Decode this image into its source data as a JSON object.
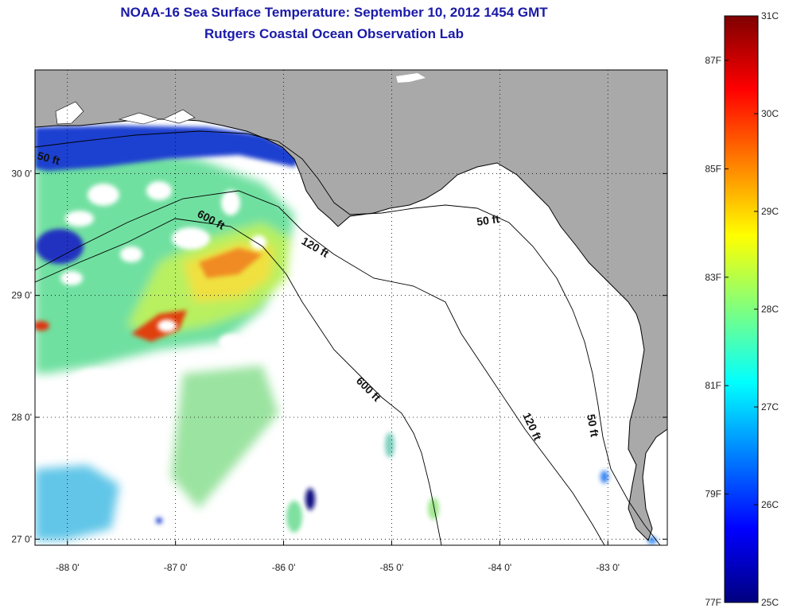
{
  "title": {
    "line1": "NOAA-16 Sea Surface Temperature:  September 10, 2012 1454 GMT",
    "line2": "Rutgers Coastal Ocean Observation Lab"
  },
  "map": {
    "lon_range": [
      -88.3,
      -82.45
    ],
    "lat_range": [
      26.95,
      30.85
    ],
    "lon_ticks": [
      {
        "value": -88,
        "label": "-88 0'"
      },
      {
        "value": -87,
        "label": "-87 0'"
      },
      {
        "value": -86,
        "label": "-86 0'"
      },
      {
        "value": -85,
        "label": "-85 0'"
      },
      {
        "value": -84,
        "label": "-84 0'"
      },
      {
        "value": -83,
        "label": "-83 0'"
      }
    ],
    "lat_ticks": [
      {
        "value": 30,
        "label": "30 0'"
      },
      {
        "value": 29,
        "label": "29 0'"
      },
      {
        "value": 28,
        "label": "28 0'"
      },
      {
        "value": 27,
        "label": "27 0'"
      }
    ],
    "land_color": "#a9a9a9",
    "no_data_color": "#ffffff",
    "contour_labels": [
      "50 ft",
      "600 ft",
      "120 ft",
      "50 ft",
      "600 ft",
      "120 ft",
      "50 ft"
    ]
  },
  "colorbar": {
    "colors": [
      "#00007f",
      "#0000ff",
      "#007fff",
      "#00ffff",
      "#7fff7f",
      "#ffff00",
      "#ff7f00",
      "#ff0000",
      "#7f0000"
    ],
    "celsius_ticks": [
      "31C",
      "30C",
      "29C",
      "28C",
      "27C",
      "26C",
      "25C"
    ],
    "fahrenheit_ticks": [
      "87F",
      "85F",
      "83F",
      "81F",
      "79F",
      "77F"
    ]
  }
}
